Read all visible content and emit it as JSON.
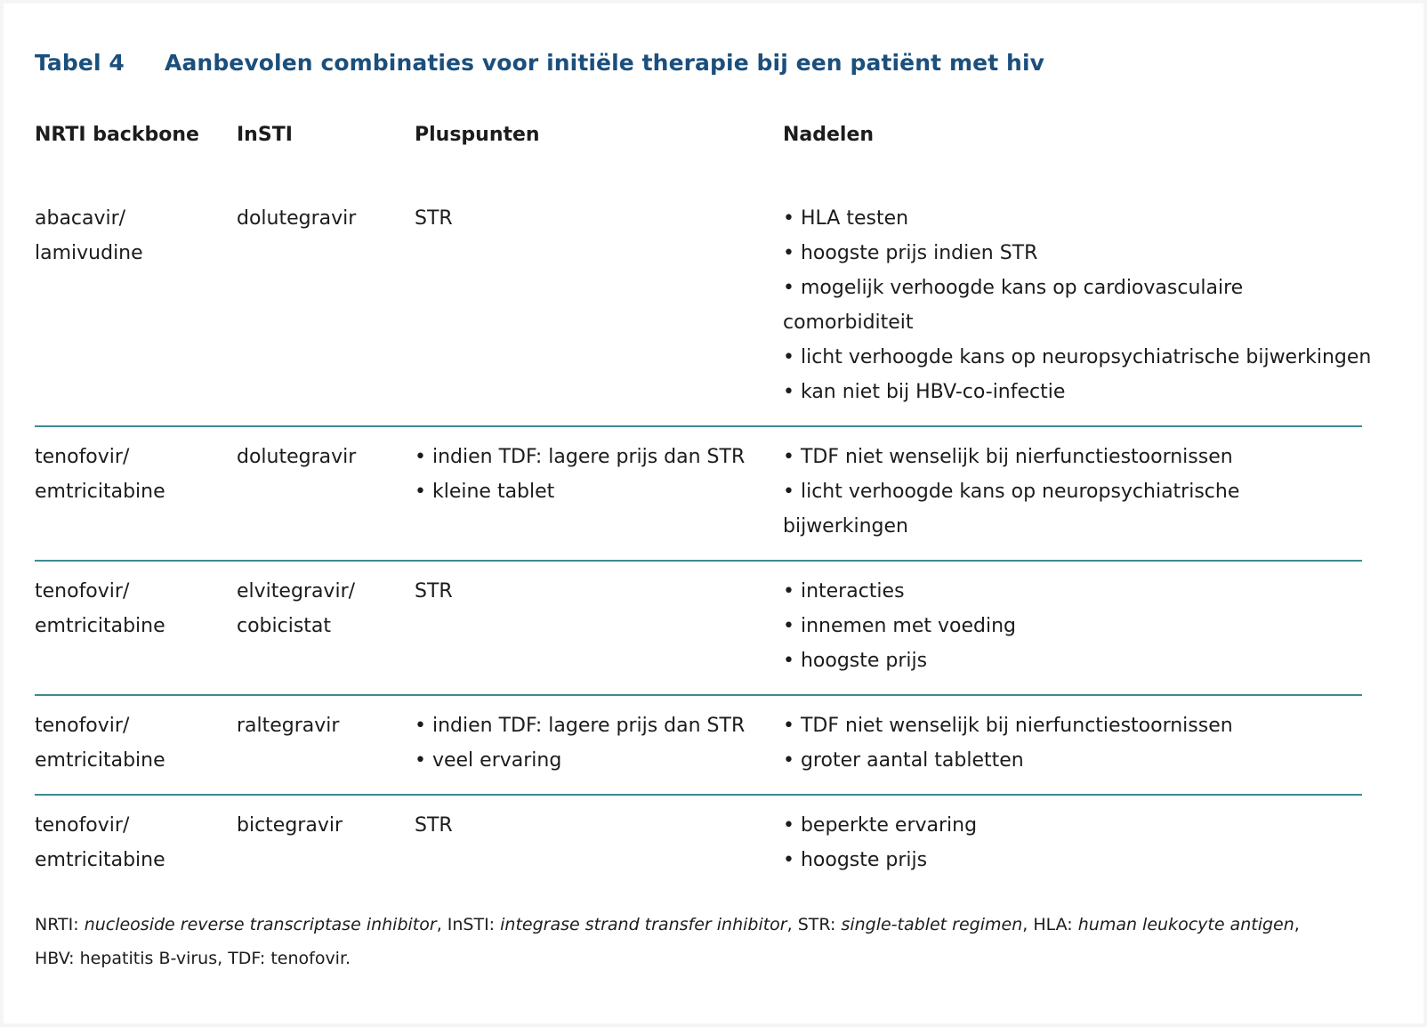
{
  "title": {
    "number": "Tabel 4",
    "text": "Aanbevolen combinaties voor initiële therapie bij een patiënt met hiv"
  },
  "headers": [
    "NRTI backbone",
    "InSTI",
    "Pluspunten",
    "Nadelen"
  ],
  "rows": [
    {
      "nrti": [
        "abacavir/",
        "lamivudine"
      ],
      "insti": [
        "dolutegravir"
      ],
      "plus": [
        "STR"
      ],
      "minus": [
        "• HLA testen",
        "• hoogste prijs indien STR",
        "• mogelijk verhoogde kans op cardiovasculaire",
        "comorbiditeit",
        "• licht verhoogde kans op neuropsychiatrische bijwerkingen",
        "• kan niet bij HBV-co-infectie"
      ]
    },
    {
      "nrti": [
        "tenofovir/",
        "emtricitabine"
      ],
      "insti": [
        "dolutegravir"
      ],
      "plus": [
        "• indien TDF: lagere prijs dan STR",
        "• kleine tablet"
      ],
      "minus": [
        "• TDF niet wenselijk bij nierfunctiestoornissen",
        "• licht verhoogde kans op neuropsychiatrische",
        "bijwerkingen"
      ]
    },
    {
      "nrti": [
        "tenofovir/",
        "emtricitabine"
      ],
      "insti": [
        "elvitegravir/",
        "cobicistat"
      ],
      "plus": [
        "STR"
      ],
      "minus": [
        "• interacties",
        "• innemen met voeding",
        "• hoogste prijs"
      ]
    },
    {
      "nrti": [
        "tenofovir/",
        "emtricitabine"
      ],
      "insti": [
        "raltegravir"
      ],
      "plus": [
        "• indien TDF: lagere prijs dan STR",
        "• veel ervaring"
      ],
      "minus": [
        "• TDF niet wenselijk bij nierfunctiestoornissen",
        "• groter aantal tabletten"
      ]
    },
    {
      "nrti": [
        "tenofovir/",
        "emtricitabine"
      ],
      "insti": [
        "bictegravir"
      ],
      "plus": [
        "STR"
      ],
      "minus": [
        "• beperkte ervaring",
        "• hoogste prijs"
      ]
    }
  ],
  "footnote": {
    "line1": [
      {
        "t": "NRTI: ",
        "i": false
      },
      {
        "t": "nucleoside reverse transcriptase inhibitor",
        "i": true
      },
      {
        "t": ", InSTI: ",
        "i": false
      },
      {
        "t": "integrase strand transfer inhibitor",
        "i": true
      },
      {
        "t": ", STR: ",
        "i": false
      },
      {
        "t": "single-tablet regimen",
        "i": true
      },
      {
        "t": ", HLA: ",
        "i": false
      },
      {
        "t": "human leukocyte antigen",
        "i": true
      },
      {
        "t": ",",
        "i": false
      }
    ],
    "line2": "HBV: hepatitis B-virus, TDF: tenofovir."
  },
  "colors": {
    "title": "#1b4f7c",
    "divider": "#3d8a93",
    "text": "#1c1c1c"
  }
}
